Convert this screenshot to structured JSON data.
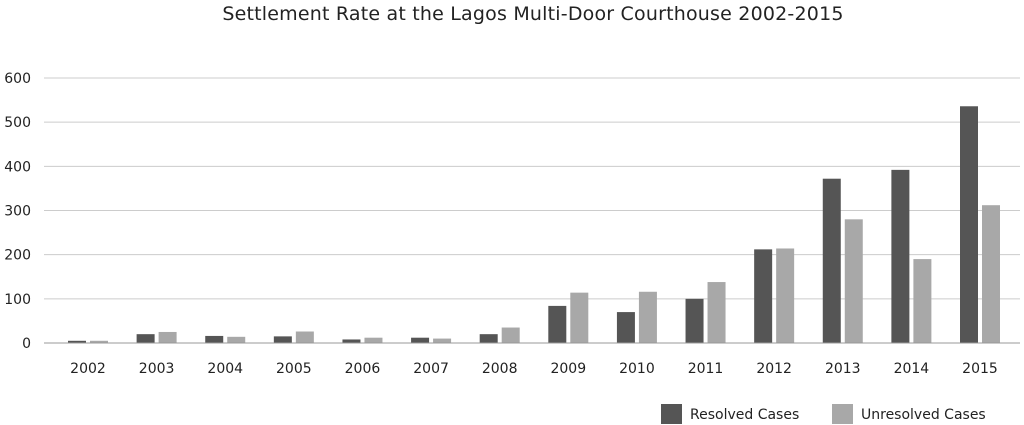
{
  "chart_data": {
    "type": "bar",
    "title": "Settlement Rate at the Lagos Multi-Door Courthouse 2002-2015",
    "xlabel": "",
    "ylabel": "",
    "categories": [
      "2002",
      "2003",
      "2004",
      "2005",
      "2006",
      "2007",
      "2008",
      "2009",
      "2010",
      "2011",
      "2012",
      "2013",
      "2014",
      "2015"
    ],
    "series": [
      {
        "name": "Resolved Cases",
        "color": "#555555",
        "values": [
          5,
          20,
          16,
          15,
          8,
          12,
          20,
          84,
          70,
          100,
          212,
          372,
          392,
          536
        ]
      },
      {
        "name": "Unresolved Cases",
        "color": "#a8a8a8",
        "values": [
          5,
          25,
          14,
          26,
          12,
          10,
          35,
          114,
          116,
          138,
          214,
          280,
          190,
          312
        ]
      }
    ],
    "ylim": [
      0,
      600
    ],
    "yticks": [
      0,
      100,
      200,
      300,
      400,
      500,
      600
    ],
    "grid": true,
    "legend_position": "bottom-right"
  }
}
